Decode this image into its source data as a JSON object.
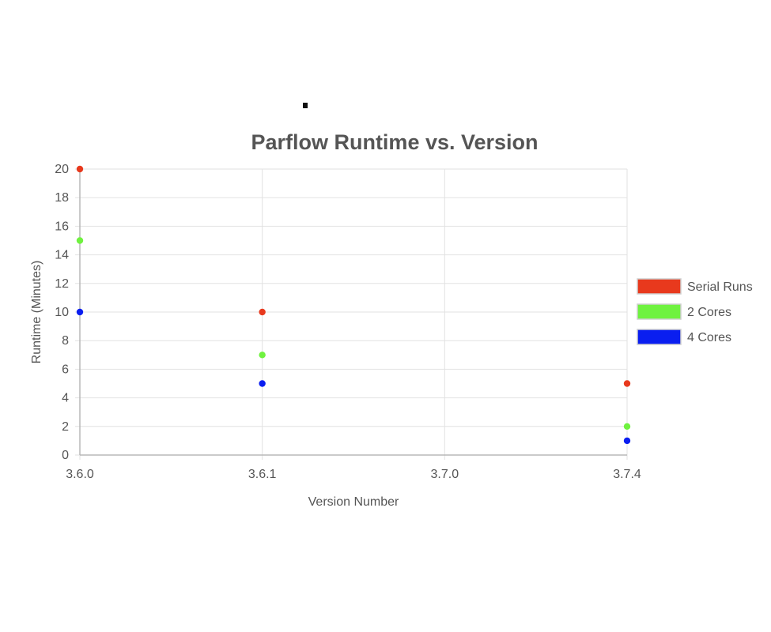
{
  "chart_data": {
    "type": "scatter",
    "title": "Parflow Runtime vs. Version",
    "xlabel": "Version Number",
    "ylabel": "Runtime (Minutes)",
    "categories": [
      "3.6.0",
      "3.6.1",
      "3.7.0",
      "3.7.4"
    ],
    "ylim": [
      0,
      20
    ],
    "yticks": [
      0,
      2,
      4,
      6,
      8,
      10,
      12,
      14,
      16,
      18,
      20
    ],
    "grid": true,
    "legend_position": "right",
    "series": [
      {
        "name": "Serial Runs",
        "color": "#e8391d",
        "points": [
          {
            "x": "3.6.0",
            "y": 20
          },
          {
            "x": "3.6.1",
            "y": 10
          },
          {
            "x": "3.7.4",
            "y": 5
          }
        ]
      },
      {
        "name": "2 Cores",
        "color": "#6ff23f",
        "points": [
          {
            "x": "3.6.0",
            "y": 15
          },
          {
            "x": "3.6.1",
            "y": 7
          },
          {
            "x": "3.7.4",
            "y": 2
          }
        ]
      },
      {
        "name": "4 Cores",
        "color": "#0a1ef0",
        "points": [
          {
            "x": "3.6.0",
            "y": 10
          },
          {
            "x": "3.6.1",
            "y": 5
          },
          {
            "x": "3.7.4",
            "y": 1
          }
        ]
      }
    ]
  }
}
